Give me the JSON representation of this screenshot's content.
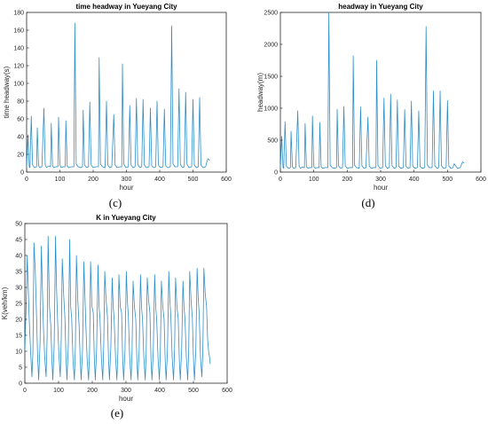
{
  "panels": [
    {
      "id": "c",
      "caption": "(c)",
      "chart_data": {
        "type": "line",
        "title": "time headway in Yueyang City",
        "xlabel": "hour",
        "ylabel": "time headway(s)",
        "xlim": [
          0,
          600
        ],
        "ylim": [
          0,
          180
        ],
        "xticks": [
          0,
          100,
          200,
          300,
          400,
          500,
          600
        ],
        "yticks": [
          0,
          20,
          40,
          60,
          80,
          100,
          120,
          140,
          160,
          180
        ],
        "grid": false,
        "legend": "none",
        "color": "#2f8fc9",
        "base": 5,
        "peaks": [
          [
            3,
            42
          ],
          [
            10,
            63
          ],
          [
            32,
            50
          ],
          [
            52,
            72
          ],
          [
            74,
            55
          ],
          [
            96,
            62
          ],
          [
            118,
            58
          ],
          [
            145,
            168
          ],
          [
            170,
            70
          ],
          [
            190,
            79
          ],
          [
            218,
            129
          ],
          [
            240,
            80
          ],
          [
            262,
            65
          ],
          [
            288,
            122
          ],
          [
            310,
            75
          ],
          [
            330,
            83
          ],
          [
            350,
            82
          ],
          [
            372,
            72
          ],
          [
            392,
            80
          ],
          [
            414,
            71
          ],
          [
            436,
            165
          ],
          [
            458,
            94
          ],
          [
            478,
            90
          ],
          [
            500,
            82
          ],
          [
            520,
            84
          ],
          [
            545,
            15
          ]
        ],
        "x": [
          0,
          4,
          8,
          10,
          14,
          18,
          24,
          30,
          32,
          36,
          40,
          46,
          52,
          56,
          60,
          66,
          72,
          74,
          78,
          82,
          88,
          94,
          96,
          100,
          104,
          110,
          116,
          118,
          122,
          126,
          134,
          142,
          145,
          149,
          155,
          162,
          168,
          170,
          174,
          180,
          186,
          190,
          194,
          200,
          208,
          216,
          218,
          222,
          228,
          236,
          240,
          244,
          250,
          256,
          262,
          266,
          272,
          280,
          286,
          288,
          292,
          298,
          306,
          310,
          314,
          320,
          326,
          330,
          334,
          340,
          346,
          350,
          354,
          360,
          368,
          372,
          376,
          382,
          388,
          392,
          396,
          402,
          410,
          414,
          418,
          424,
          432,
          436,
          440,
          446,
          454,
          458,
          462,
          468,
          474,
          478,
          482,
          488,
          496,
          500,
          504,
          510,
          516,
          520,
          524,
          530,
          538,
          542,
          545,
          548,
          550
        ],
        "y": [
          5,
          42,
          6,
          5,
          63,
          8,
          5,
          6,
          50,
          7,
          5,
          6,
          72,
          8,
          5,
          7,
          6,
          55,
          7,
          5,
          6,
          6,
          62,
          8,
          5,
          6,
          6,
          58,
          7,
          5,
          6,
          6,
          168,
          9,
          6,
          5,
          6,
          70,
          8,
          5,
          6,
          79,
          8,
          5,
          6,
          6,
          129,
          9,
          6,
          5,
          80,
          8,
          5,
          6,
          65,
          8,
          5,
          6,
          6,
          122,
          9,
          5,
          6,
          75,
          8,
          5,
          6,
          83,
          9,
          5,
          6,
          82,
          8,
          5,
          6,
          72,
          7,
          5,
          6,
          80,
          8,
          5,
          6,
          71,
          7,
          5,
          6,
          165,
          9,
          6,
          6,
          94,
          9,
          5,
          6,
          90,
          9,
          5,
          6,
          82,
          8,
          5,
          6,
          84,
          8,
          5,
          6,
          12,
          15,
          14,
          13
        ]
      }
    },
    {
      "id": "d",
      "caption": "(d)",
      "chart_data": {
        "type": "line",
        "title": "headway in Yueyang City",
        "xlabel": "hour",
        "ylabel": "headway(m)",
        "xlim": [
          0,
          600
        ],
        "ylim": [
          0,
          2500
        ],
        "xticks": [
          0,
          100,
          200,
          300,
          400,
          500,
          600
        ],
        "yticks": [
          0,
          500,
          1000,
          1500,
          2000,
          2500
        ],
        "grid": false,
        "legend": "none",
        "color": "#2f8fc9",
        "base": 60,
        "peaks": [
          [
            3,
            560
          ],
          [
            10,
            790
          ],
          [
            32,
            640
          ],
          [
            52,
            960
          ],
          [
            74,
            760
          ],
          [
            96,
            880
          ],
          [
            118,
            780
          ],
          [
            145,
            2500
          ],
          [
            170,
            980
          ],
          [
            190,
            1030
          ],
          [
            218,
            1820
          ],
          [
            240,
            1020
          ],
          [
            262,
            860
          ],
          [
            288,
            1750
          ],
          [
            310,
            1160
          ],
          [
            330,
            1220
          ],
          [
            350,
            1130
          ],
          [
            372,
            980
          ],
          [
            392,
            1110
          ],
          [
            414,
            960
          ],
          [
            436,
            2280
          ],
          [
            458,
            1270
          ],
          [
            478,
            1270
          ],
          [
            500,
            1120
          ],
          [
            520,
            130
          ],
          [
            545,
            160
          ]
        ],
        "x": [
          0,
          4,
          8,
          10,
          14,
          18,
          24,
          30,
          32,
          36,
          40,
          46,
          52,
          56,
          60,
          66,
          72,
          74,
          78,
          82,
          88,
          94,
          96,
          100,
          104,
          110,
          116,
          118,
          122,
          126,
          134,
          142,
          145,
          149,
          155,
          162,
          168,
          170,
          174,
          180,
          186,
          190,
          194,
          200,
          208,
          216,
          218,
          222,
          228,
          236,
          240,
          244,
          250,
          256,
          262,
          266,
          272,
          280,
          286,
          288,
          292,
          298,
          306,
          310,
          314,
          320,
          326,
          330,
          334,
          340,
          346,
          350,
          354,
          360,
          368,
          372,
          376,
          382,
          388,
          392,
          396,
          402,
          410,
          414,
          418,
          424,
          432,
          436,
          440,
          446,
          454,
          458,
          462,
          468,
          474,
          478,
          482,
          488,
          496,
          500,
          504,
          510,
          516,
          520,
          524,
          530,
          538,
          542,
          545,
          548,
          550
        ],
        "y": [
          60,
          560,
          70,
          60,
          790,
          90,
          60,
          70,
          640,
          80,
          60,
          70,
          960,
          95,
          60,
          80,
          70,
          760,
          85,
          60,
          70,
          70,
          880,
          90,
          60,
          70,
          70,
          780,
          85,
          60,
          70,
          70,
          2500,
          110,
          70,
          60,
          70,
          980,
          95,
          60,
          70,
          1030,
          95,
          60,
          70,
          70,
          1820,
          105,
          70,
          60,
          1020,
          95,
          60,
          70,
          860,
          90,
          60,
          70,
          70,
          1750,
          105,
          60,
          70,
          1160,
          100,
          60,
          70,
          1220,
          100,
          60,
          70,
          1130,
          95,
          60,
          70,
          980,
          90,
          60,
          70,
          1110,
          95,
          60,
          70,
          960,
          90,
          60,
          70,
          2280,
          110,
          70,
          70,
          1270,
          100,
          60,
          70,
          1270,
          100,
          60,
          70,
          1120,
          95,
          60,
          70,
          130,
          100,
          60,
          70,
          120,
          160,
          150,
          140
        ]
      }
    },
    {
      "id": "e",
      "caption": "(e)",
      "chart_data": {
        "type": "line",
        "title": "K in Yueyang City",
        "xlabel": "hour",
        "ylabel": "K(veh/km)",
        "xlim": [
          0,
          600
        ],
        "ylim": [
          0,
          50
        ],
        "xticks": [
          0,
          100,
          200,
          300,
          400,
          500,
          600
        ],
        "yticks": [
          0,
          5,
          10,
          15,
          20,
          25,
          30,
          35,
          40,
          45,
          50
        ],
        "grid": false,
        "legend": "none",
        "color": "#2f8fc9",
        "x": [
          0,
          4,
          7,
          10,
          13,
          17,
          21,
          24,
          27,
          31,
          35,
          38,
          41,
          45,
          49,
          52,
          55,
          59,
          63,
          66,
          69,
          73,
          77,
          80,
          83,
          87,
          91,
          94,
          97,
          101,
          105,
          108,
          111,
          115,
          119,
          122,
          125,
          129,
          133,
          136,
          139,
          143,
          147,
          150,
          153,
          157,
          161,
          164,
          167,
          171,
          175,
          178,
          181,
          185,
          189,
          192,
          195,
          199,
          203,
          206,
          209,
          213,
          217,
          220,
          223,
          227,
          231,
          234,
          237,
          241,
          245,
          248,
          251,
          255,
          259,
          262,
          265,
          269,
          273,
          276,
          279,
          283,
          287,
          290,
          293,
          297,
          301,
          304,
          307,
          311,
          315,
          318,
          321,
          325,
          329,
          332,
          335,
          339,
          343,
          346,
          349,
          353,
          357,
          360,
          363,
          367,
          371,
          374,
          377,
          381,
          385,
          388,
          391,
          395,
          399,
          402,
          405,
          409,
          413,
          416,
          419,
          423,
          427,
          430,
          433,
          437,
          441,
          444,
          447,
          451,
          455,
          458,
          461,
          465,
          469,
          472,
          475,
          479,
          483,
          486,
          489,
          493,
          497,
          500,
          503,
          507,
          511,
          514,
          517,
          521,
          525,
          528,
          531,
          535,
          539,
          542,
          545,
          548,
          550
        ],
        "y": [
          10,
          25,
          40,
          30,
          20,
          10,
          2,
          10,
          44,
          35,
          20,
          8,
          1,
          12,
          43,
          30,
          18,
          8,
          2,
          14,
          46,
          24,
          18,
          8,
          1,
          12,
          46,
          30,
          20,
          9,
          2,
          14,
          39,
          28,
          20,
          8,
          1,
          12,
          45,
          24,
          20,
          7,
          1,
          12,
          40,
          26,
          18,
          8,
          1,
          10,
          38,
          28,
          18,
          7,
          1,
          10,
          38,
          24,
          22,
          8,
          1,
          11,
          37,
          24,
          20,
          8,
          1,
          12,
          35,
          26,
          21,
          8,
          1,
          11,
          33,
          24,
          20,
          8,
          1,
          10,
          34,
          24,
          22,
          8,
          1,
          10,
          35,
          26,
          21,
          8,
          1,
          10,
          32,
          24,
          20,
          8,
          1,
          10,
          34,
          24,
          20,
          8,
          1,
          10,
          33,
          26,
          22,
          8,
          1,
          10,
          34,
          24,
          20,
          8,
          1,
          10,
          32,
          24,
          20,
          8,
          1,
          10,
          35,
          26,
          21,
          8,
          1,
          10,
          33,
          24,
          20,
          8,
          1,
          10,
          32,
          24,
          20,
          8,
          1,
          10,
          35,
          26,
          20,
          8,
          1,
          10,
          36,
          27,
          22,
          8,
          2,
          10,
          36,
          28,
          24,
          14,
          10,
          8,
          6
        ]
      }
    }
  ]
}
